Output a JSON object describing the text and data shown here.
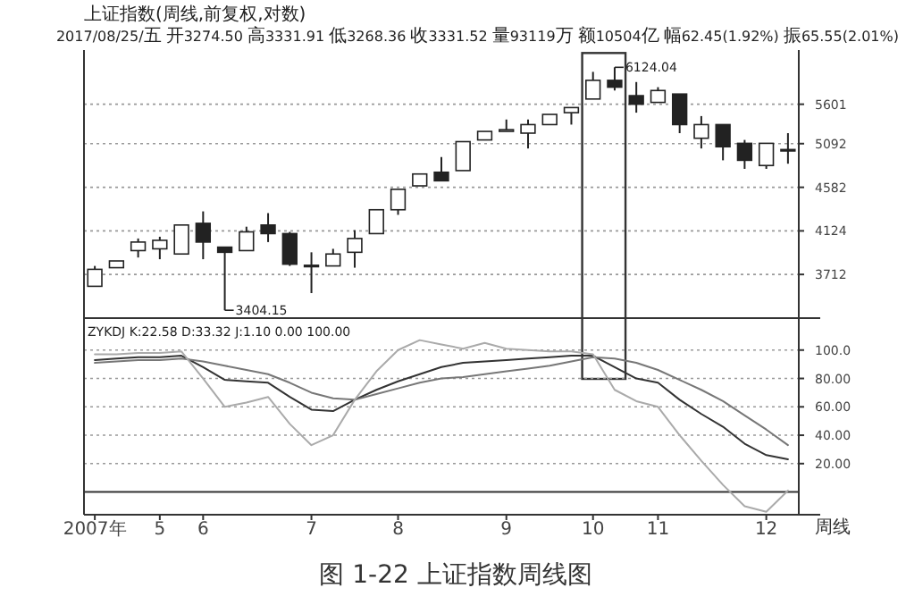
{
  "chart_data": [
    {
      "type": "candlestick",
      "title": "上证指数(周线,前复权,对数)",
      "subtitle": "2017/08/25/五 开3274.50 高3331.91 低3268.36 收3331.52 量93119万 额10504亿 幅62.45(1.92%) 振65.55(2.01%)",
      "categories": [
        null,
        null,
        null,
        null,
        null,
        null,
        null,
        null,
        null,
        null,
        null,
        null,
        null,
        null,
        null,
        null,
        null,
        null,
        null,
        null,
        null,
        null,
        null,
        null,
        null,
        null,
        null,
        null,
        null,
        null,
        null,
        null,
        null
      ],
      "ohlc": [
        [
          3607,
          3789,
          3607,
          3758
        ],
        [
          3773,
          3835,
          3773,
          3835
        ],
        [
          3932,
          4049,
          3867,
          4014
        ],
        [
          3949,
          4066,
          3851,
          4031
        ],
        [
          3900,
          4183,
          3900,
          4183
        ],
        [
          4200,
          4323,
          3851,
          4014
        ],
        [
          3965,
          3965,
          3404.15,
          3916
        ],
        [
          3932,
          4166,
          3932,
          4114
        ],
        [
          4183,
          4305,
          4014,
          4097
        ],
        [
          4097,
          4114,
          3789,
          3805
        ],
        [
          3790,
          3916,
          3548,
          3795
        ],
        [
          3789,
          3949,
          3789,
          3900
        ],
        [
          3916,
          4131,
          3773,
          4049
        ],
        [
          4097,
          4340,
          4097,
          4340
        ],
        [
          4340,
          4560,
          4287,
          4560
        ],
        [
          4598,
          4732,
          4598,
          4732
        ],
        [
          4752,
          4931,
          4655,
          4655
        ],
        [
          4771,
          5117,
          4771,
          5117
        ],
        [
          5138,
          5245,
          5138,
          5245
        ],
        [
          5245,
          5398,
          5245,
          5267
        ],
        [
          5223,
          5398,
          5033,
          5332
        ],
        [
          5332,
          5465,
          5332,
          5465
        ],
        [
          5488,
          5556,
          5332,
          5556
        ],
        [
          5672,
          6057,
          5672,
          5934
        ],
        [
          5934,
          6124.04,
          5790,
          5837
        ],
        [
          5718,
          5910,
          5488,
          5601
        ],
        [
          5626,
          5837,
          5626,
          5790
        ],
        [
          5741,
          5741,
          5223,
          5332
        ],
        [
          5159,
          5443,
          5033,
          5332
        ],
        [
          5332,
          5332,
          4891,
          5054
        ],
        [
          5096,
          5138,
          4791,
          4891
        ],
        [
          4830,
          5096,
          4791,
          5096
        ],
        [
          5013,
          5223,
          4851,
          5020
        ]
      ],
      "log": "y",
      "ylim": [
        3340,
        6330
      ],
      "yticks": [
        3712,
        4124,
        4582,
        5092,
        5601
      ],
      "grid": "y",
      "tick_labels": "y",
      "annotations": [
        "3404.15",
        "6124.04"
      ]
    },
    {
      "type": "line",
      "title": "ZYKDJ K:22.58 D:33.32 J:1.10  0.00  100.00",
      "xlabel": "周线",
      "categories": [
        "2007年",
        null,
        null,
        "5",
        null,
        "6",
        null,
        null,
        null,
        null,
        "7",
        null,
        null,
        null,
        "8",
        null,
        null,
        null,
        null,
        "9",
        null,
        null,
        null,
        "10",
        null,
        null,
        "11",
        null,
        null,
        null,
        null,
        "12",
        null
      ],
      "series": [
        {
          "color": "#333333",
          "values": [
            93,
            94,
            95,
            95,
            96,
            88,
            79,
            78,
            77,
            67,
            58,
            57,
            65,
            72,
            78,
            83,
            88,
            91,
            92,
            93,
            94,
            95,
            96,
            96,
            88,
            80,
            77,
            65,
            55,
            46,
            34,
            26,
            23
          ]
        },
        {
          "color": "#777777",
          "values": [
            91,
            92,
            93,
            93,
            94,
            92,
            89,
            86,
            83,
            77,
            70,
            66,
            65,
            69,
            73,
            77,
            80,
            81,
            83,
            85,
            87,
            89,
            92,
            95,
            94,
            91,
            86,
            79,
            72,
            64,
            54,
            44,
            33
          ]
        },
        {
          "color": "#aaaaaa",
          "values": [
            97,
            97,
            98,
            98,
            99,
            80,
            60,
            63,
            67,
            48,
            33,
            40,
            65,
            85,
            100,
            107,
            104,
            101,
            105,
            101,
            100,
            99,
            99,
            97,
            72,
            64,
            60,
            40,
            22,
            5,
            -10,
            -14,
            1
          ]
        }
      ],
      "ylim": [
        -16,
        120
      ],
      "yticks": [
        {
          "value": 20,
          "label": "20.00"
        },
        {
          "value": 40,
          "label": "40.00"
        },
        {
          "value": 60,
          "label": "60.00"
        },
        {
          "value": 80,
          "label": "80.00"
        },
        {
          "value": 100,
          "label": "100.0"
        }
      ],
      "grid": "y",
      "ref_lines": [
        {
          "axis": "y",
          "value": 0
        }
      ],
      "annotations": [
        "图 1-22 上证指数周线图"
      ]
    }
  ]
}
